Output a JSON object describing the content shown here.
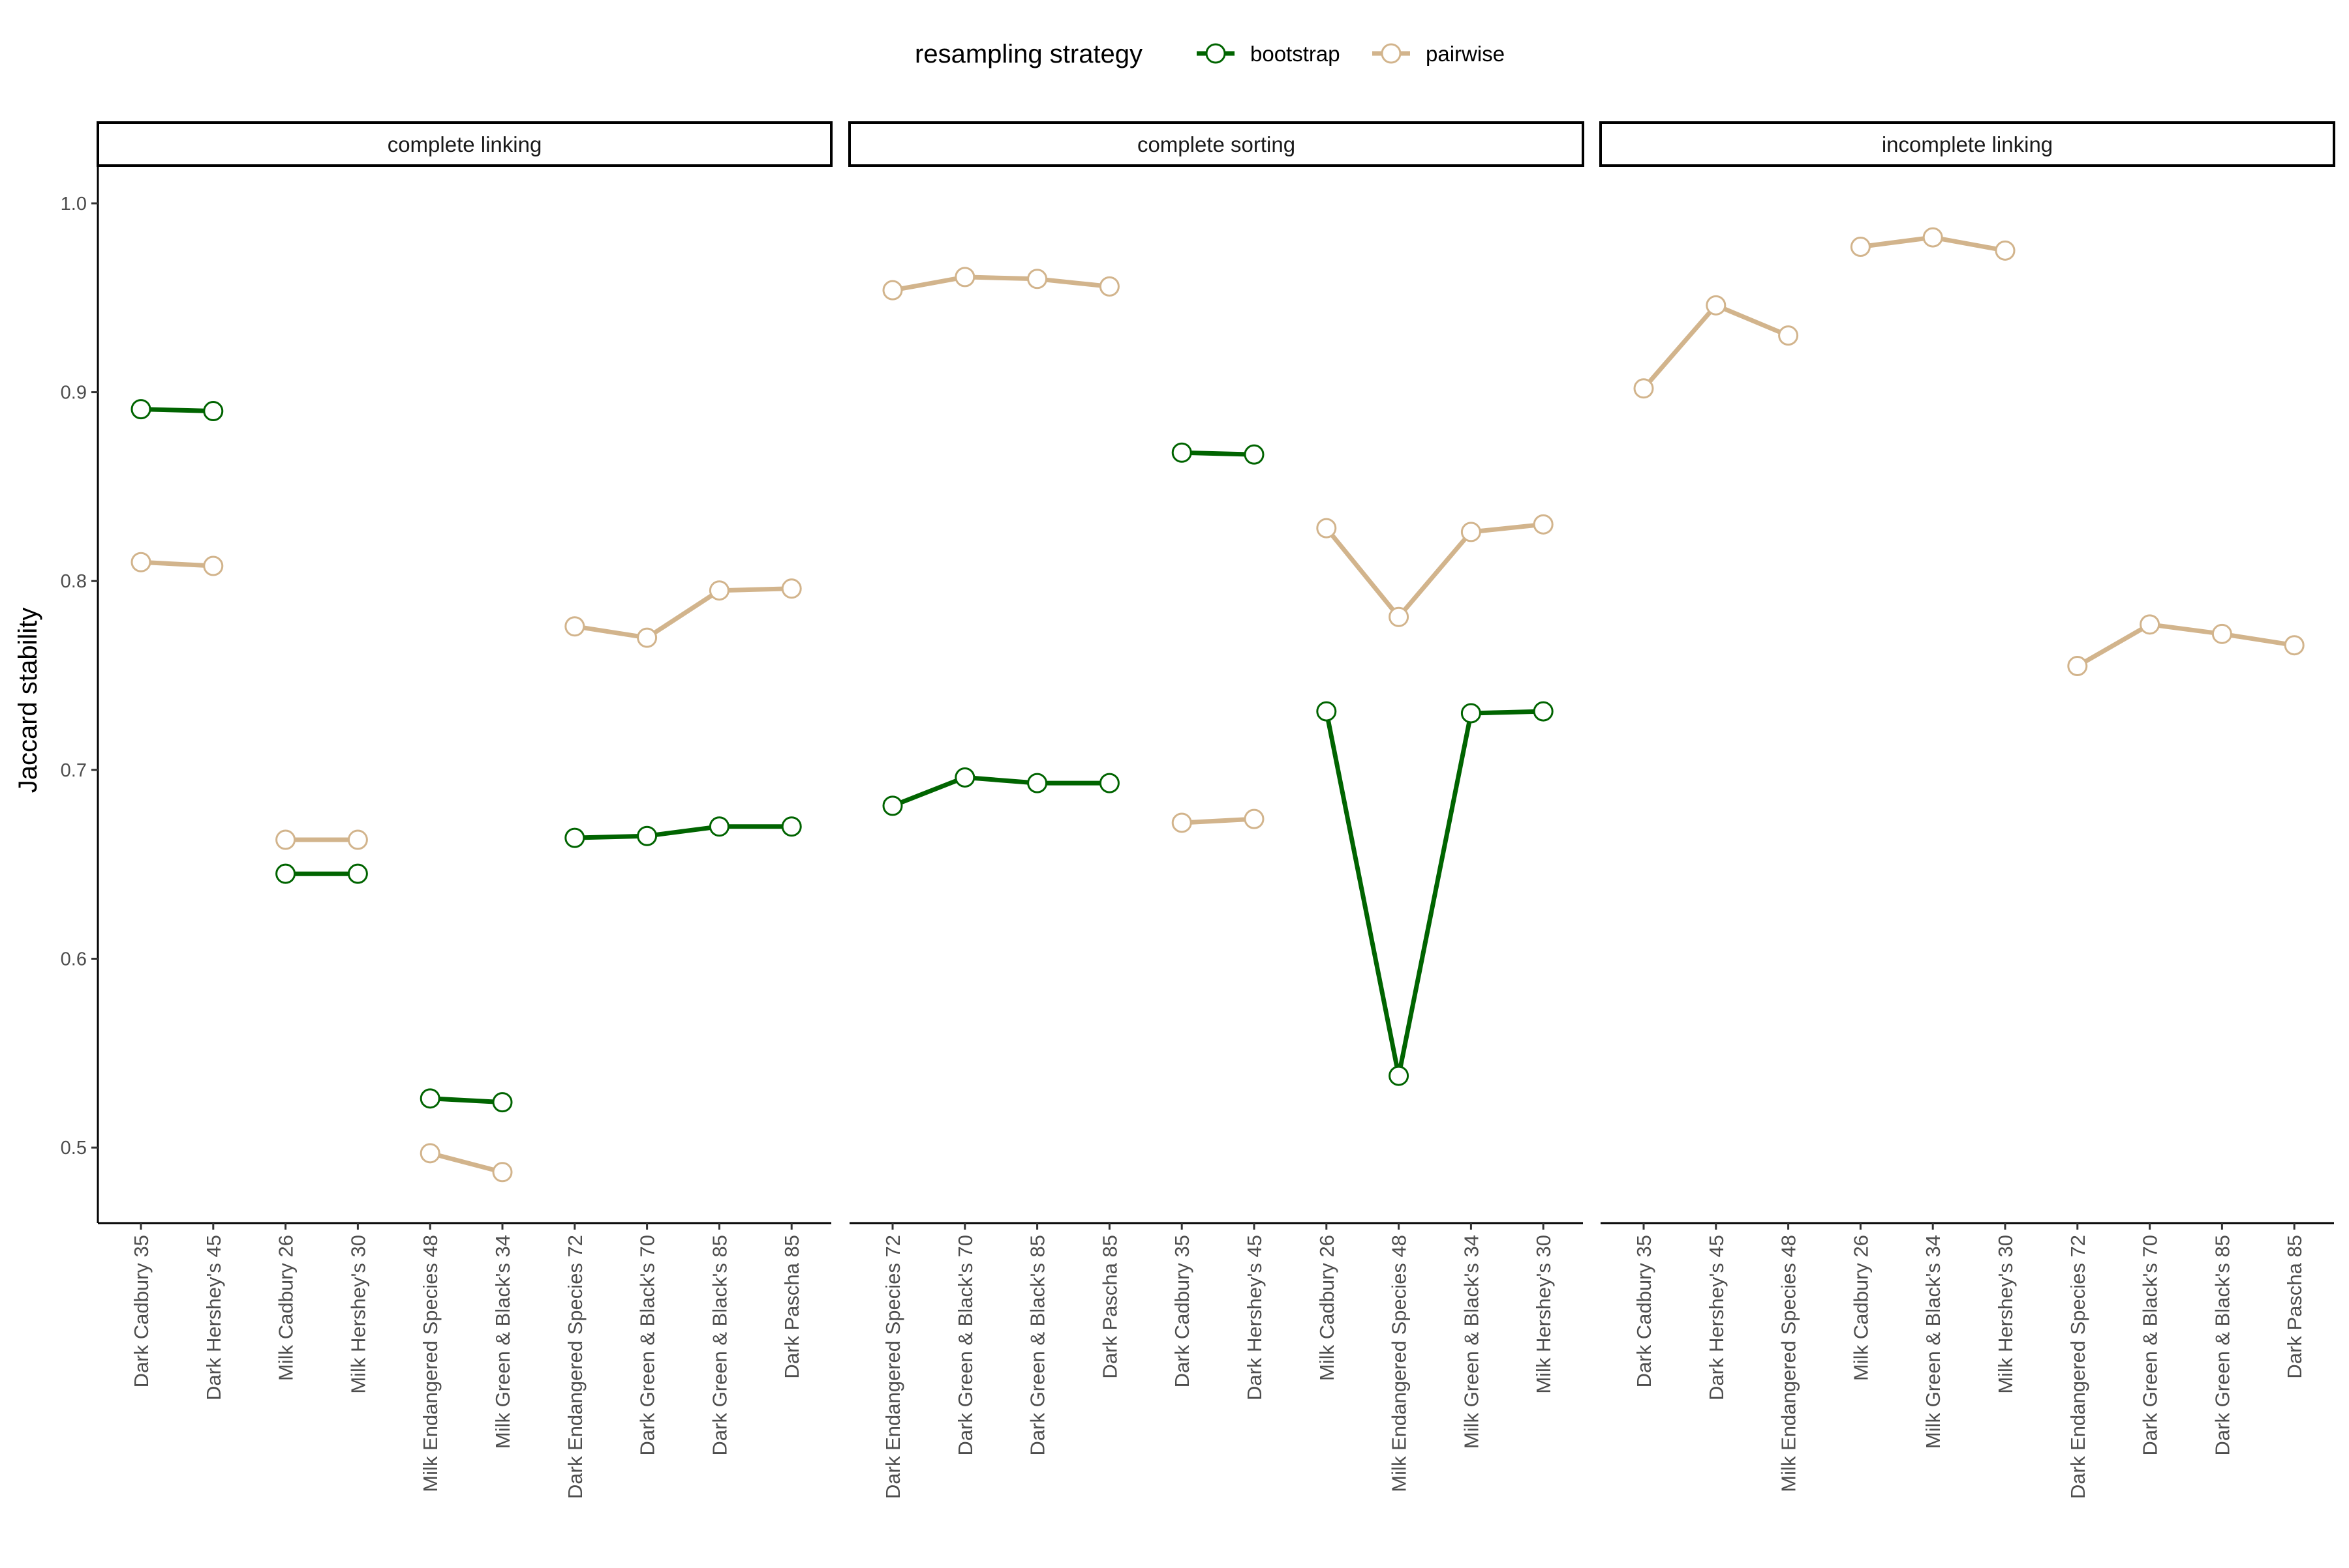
{
  "chart_data": {
    "type": "line",
    "ylabel": "Jaccard stability",
    "ylim": [
      0.46,
      1.02
    ],
    "yticks": [
      0.5,
      0.6,
      0.7,
      0.8,
      0.9,
      1.0
    ],
    "ytick_labels": [
      "0.5",
      "0.6",
      "0.7",
      "0.8",
      "0.9",
      "1.0"
    ],
    "grid": false,
    "legend": {
      "title": "resampling strategy",
      "position": "top",
      "entries": [
        {
          "name": "bootstrap",
          "color": "#006400"
        },
        {
          "name": "pairwise",
          "color": "#D2B48C"
        }
      ]
    },
    "facets": [
      {
        "title": "complete linking",
        "categories": [
          "Dark Cadbury 35",
          "Dark Hershey's 45",
          "Milk Cadbury 26",
          "Milk Hershey's 30",
          "Milk Endangered Species 48",
          "Milk Green & Black's 34",
          "Dark Endangered Species 72",
          "Dark Green & Black's 70",
          "Dark Green & Black's 85",
          "Dark Pascha 85"
        ],
        "series": [
          {
            "name": "bootstrap",
            "segments": [
              [
                0,
                1
              ],
              [
                2,
                3
              ],
              [
                4,
                5
              ],
              [
                6,
                7,
                8,
                9
              ]
            ],
            "values": [
              0.891,
              0.89,
              0.645,
              0.645,
              0.526,
              0.524,
              0.664,
              0.665,
              0.67,
              0.67
            ]
          },
          {
            "name": "pairwise",
            "segments": [
              [
                0,
                1
              ],
              [
                2,
                3
              ],
              [
                4,
                5
              ],
              [
                6,
                7,
                8,
                9
              ]
            ],
            "values": [
              0.81,
              0.808,
              0.663,
              0.663,
              0.497,
              0.487,
              0.776,
              0.77,
              0.795,
              0.796
            ]
          }
        ]
      },
      {
        "title": "complete sorting",
        "categories": [
          "Dark Endangered Species 72",
          "Dark Green & Black's 70",
          "Dark Green & Black's 85",
          "Dark Pascha 85",
          "Dark Cadbury 35",
          "Dark Hershey's 45",
          "Milk Cadbury 26",
          "Milk Endangered Species 48",
          "Milk Green & Black's 34",
          "Milk Hershey's 30"
        ],
        "series": [
          {
            "name": "bootstrap",
            "segments": [
              [
                0,
                1,
                2,
                3
              ],
              [
                4,
                5
              ],
              [
                6,
                7,
                8,
                9
              ]
            ],
            "values": [
              0.681,
              0.696,
              0.693,
              0.693,
              0.868,
              0.867,
              0.731,
              0.538,
              0.73,
              0.731
            ]
          },
          {
            "name": "pairwise",
            "segments": [
              [
                0,
                1,
                2,
                3
              ],
              [
                4,
                5
              ],
              [
                6,
                7,
                8,
                9
              ]
            ],
            "values": [
              0.954,
              0.961,
              0.96,
              0.956,
              0.672,
              0.674,
              0.828,
              0.781,
              0.826,
              0.83
            ]
          }
        ]
      },
      {
        "title": "incomplete linking",
        "categories": [
          "Dark Cadbury 35",
          "Dark Hershey's 45",
          "Milk Endangered Species 48",
          "Milk Cadbury 26",
          "Milk Green & Black's 34",
          "Milk Hershey's 30",
          "Dark Endangered Species 72",
          "Dark Green & Black's 70",
          "Dark Green & Black's 85",
          "Dark Pascha 85"
        ],
        "series": [
          {
            "name": "pairwise",
            "segments": [
              [
                0,
                1,
                2
              ],
              [
                3,
                4,
                5
              ],
              [
                6,
                7,
                8,
                9
              ]
            ],
            "values": [
              0.902,
              0.946,
              0.93,
              0.977,
              0.982,
              0.975,
              0.755,
              0.777,
              0.772,
              0.766
            ]
          }
        ]
      }
    ]
  }
}
